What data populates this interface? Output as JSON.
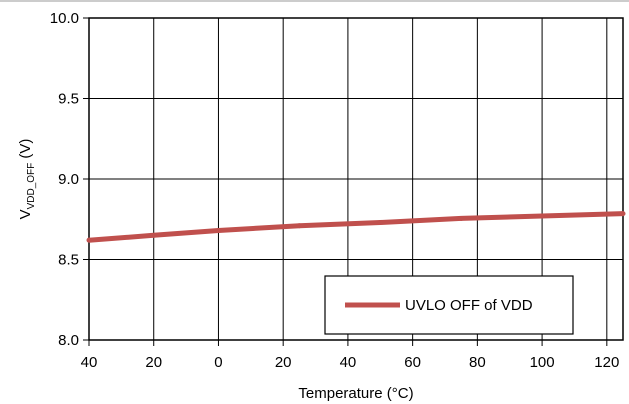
{
  "chart_data": {
    "type": "line",
    "xlabel": "Temperature (°C)",
    "ylabel_main": "V",
    "ylabel_sub": "VDD_OFF",
    "ylabel_unit": " (V)",
    "x_ticks": [
      "40",
      "20",
      "0",
      "20",
      "40",
      "60",
      "80",
      "100",
      "120"
    ],
    "x_tick_values": [
      -40,
      -20,
      0,
      20,
      40,
      60,
      80,
      100,
      120
    ],
    "xlim": [
      -40,
      125
    ],
    "y_ticks": [
      "8.0",
      "8.5",
      "9.0",
      "9.5",
      "10.0"
    ],
    "y_tick_values": [
      8.0,
      8.5,
      9.0,
      9.5,
      10.0
    ],
    "ylim": [
      8.0,
      10.0
    ],
    "grid": true,
    "legend_position": "bottom-right",
    "series": [
      {
        "name": "UVLO OFF of VDD",
        "color": "#c0504d",
        "x": [
          -40,
          -20,
          0,
          25,
          50,
          75,
          100,
          125
        ],
        "y": [
          8.62,
          8.65,
          8.68,
          8.71,
          8.73,
          8.755,
          8.77,
          8.785
        ]
      }
    ]
  }
}
